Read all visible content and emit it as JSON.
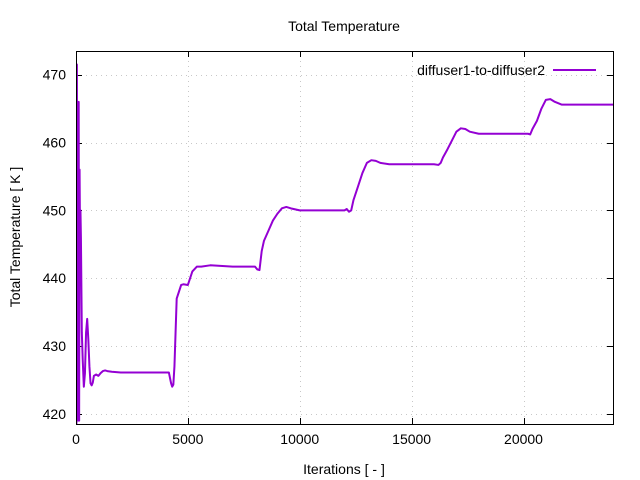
{
  "chart_data": {
    "type": "line",
    "title": "Total Temperature",
    "xlabel": "Iterations [ - ]",
    "ylabel": "Total Temperature [ K ]",
    "xlim": [
      0,
      24000
    ],
    "ylim": [
      418.5,
      473.5
    ],
    "xticks": [
      0,
      5000,
      10000,
      15000,
      20000
    ],
    "yticks": [
      420,
      430,
      440,
      450,
      460,
      470
    ],
    "grid": true,
    "legend_position": "top-right",
    "series": [
      {
        "name": "diffuser1-to-diffuser2",
        "color": "#9400d3",
        "x": [
          0,
          20,
          40,
          60,
          80,
          100,
          120,
          140,
          160,
          180,
          200,
          220,
          260,
          300,
          350,
          400,
          450,
          500,
          550,
          600,
          650,
          700,
          750,
          800,
          900,
          1000,
          1100,
          1200,
          1300,
          1400,
          1600,
          2000,
          2500,
          3000,
          3500,
          4000,
          4150,
          4250,
          4300,
          4350,
          4400,
          4450,
          4500,
          4600,
          4700,
          4800,
          5000,
          5200,
          5400,
          5600,
          6000,
          7000,
          8000,
          8100,
          8200,
          8300,
          8400,
          8600,
          8800,
          9000,
          9200,
          9400,
          9600,
          10000,
          11000,
          12000,
          12100,
          12200,
          12300,
          12400,
          12600,
          12800,
          13000,
          13200,
          13400,
          13600,
          14000,
          15000,
          16000,
          16200,
          16300,
          16400,
          16600,
          16800,
          17000,
          17200,
          17400,
          17600,
          18000,
          19000,
          20000,
          20200,
          20300,
          20400,
          20600,
          20800,
          21000,
          21200,
          21400,
          21700,
          22000,
          23000,
          24000
        ],
        "values": [
          445,
          418,
          471.5,
          420,
          466,
          419,
          466,
          419,
          456,
          446,
          450,
          446,
          432,
          428,
          424,
          426,
          432,
          434,
          431,
          427,
          424.5,
          424.2,
          424.6,
          425.6,
          425.8,
          425.6,
          426,
          426.3,
          426.4,
          426.3,
          426.2,
          426.1,
          426.1,
          426.1,
          426.1,
          426.1,
          426.1,
          424.5,
          424,
          424.3,
          427,
          432,
          437,
          438,
          439,
          439.1,
          439,
          441,
          441.7,
          441.7,
          441.9,
          441.7,
          441.7,
          441.3,
          441.2,
          444,
          445.5,
          447,
          448.5,
          449.5,
          450.3,
          450.5,
          450.3,
          450,
          450,
          450,
          450.2,
          449.8,
          450,
          451.5,
          453.5,
          455.5,
          457,
          457.4,
          457.3,
          457,
          456.8,
          456.8,
          456.8,
          456.7,
          457,
          457.8,
          459,
          460.3,
          461.6,
          462.1,
          462,
          461.6,
          461.3,
          461.3,
          461.3,
          461.3,
          461.2,
          462,
          463.2,
          465,
          466.3,
          466.4,
          466,
          465.6,
          465.6,
          465.6,
          465.6
        ]
      }
    ]
  }
}
